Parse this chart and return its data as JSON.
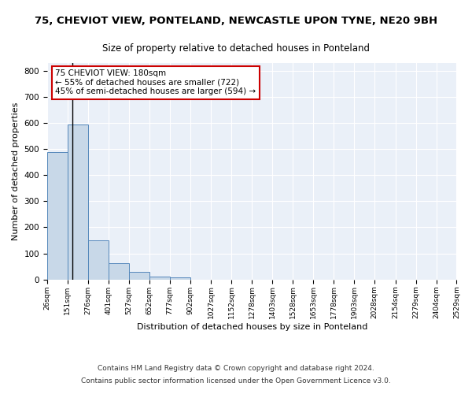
{
  "title1": "75, CHEVIOT VIEW, PONTELAND, NEWCASTLE UPON TYNE, NE20 9BH",
  "title2": "Size of property relative to detached houses in Ponteland",
  "xlabel": "Distribution of detached houses by size in Ponteland",
  "ylabel": "Number of detached properties",
  "footnote1": "Contains HM Land Registry data © Crown copyright and database right 2024.",
  "footnote2": "Contains public sector information licensed under the Open Government Licence v3.0.",
  "bin_edges": [
    26,
    151,
    276,
    401,
    527,
    652,
    777,
    902,
    1027,
    1152,
    1278,
    1403,
    1528,
    1653,
    1778,
    1903,
    2028,
    2154,
    2279,
    2404,
    2529
  ],
  "bar_heights": [
    490,
    595,
    150,
    63,
    28,
    10,
    8,
    0,
    0,
    0,
    0,
    0,
    0,
    0,
    0,
    0,
    0,
    0,
    0,
    0
  ],
  "bar_color": "#c8d8e8",
  "bar_edge_color": "#5588bb",
  "property_size": 180,
  "annotation_text_line1": "75 CHEVIOT VIEW: 180sqm",
  "annotation_text_line2": "← 55% of detached houses are smaller (722)",
  "annotation_text_line3": "45% of semi-detached houses are larger (594) →",
  "vline_x": 180,
  "ylim": [
    0,
    830
  ],
  "yticks": [
    0,
    100,
    200,
    300,
    400,
    500,
    600,
    700,
    800
  ],
  "bg_color": "#eaf0f8",
  "grid_color": "#ffffff",
  "annotation_box_color": "#ffffff",
  "annotation_box_edge": "#cc0000",
  "vline_color": "#000000",
  "title1_fontsize": 9.5,
  "title2_fontsize": 8.5,
  "xlabel_fontsize": 8,
  "ylabel_fontsize": 8,
  "footnote_fontsize": 6.5,
  "annotation_fontsize": 7.5
}
